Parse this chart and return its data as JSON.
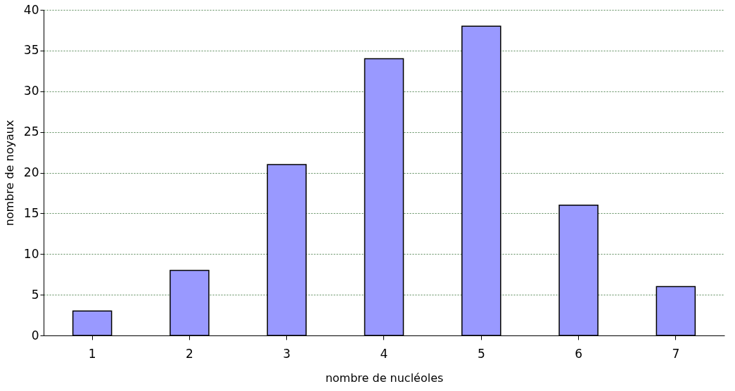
{
  "chart_data": {
    "type": "bar",
    "xlabel": "nombre de nucléoles",
    "ylabel": "nombre de noyaux",
    "categories": [
      "1",
      "2",
      "3",
      "4",
      "5",
      "6",
      "7"
    ],
    "values": [
      3,
      8,
      21,
      34,
      38,
      16,
      6
    ],
    "color": "#9999ff",
    "ylim": [
      0,
      40
    ],
    "yticks": [
      0,
      5,
      10,
      15,
      20,
      25,
      30,
      35,
      40
    ],
    "grid": "y"
  }
}
